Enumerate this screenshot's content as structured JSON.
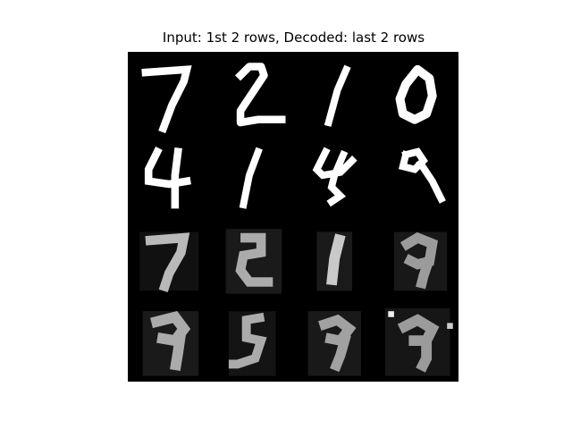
{
  "title": "Input: 1st 2 rows, Decoded: last 2 rows",
  "grid": {
    "rows": 4,
    "cols": 4,
    "input_digits": [
      "7",
      "2",
      "1",
      "0",
      "4",
      "1",
      "4",
      "9"
    ],
    "decoded_digits": [
      "7",
      "2",
      "1",
      "9",
      "9",
      "5",
      "9",
      "9"
    ]
  }
}
